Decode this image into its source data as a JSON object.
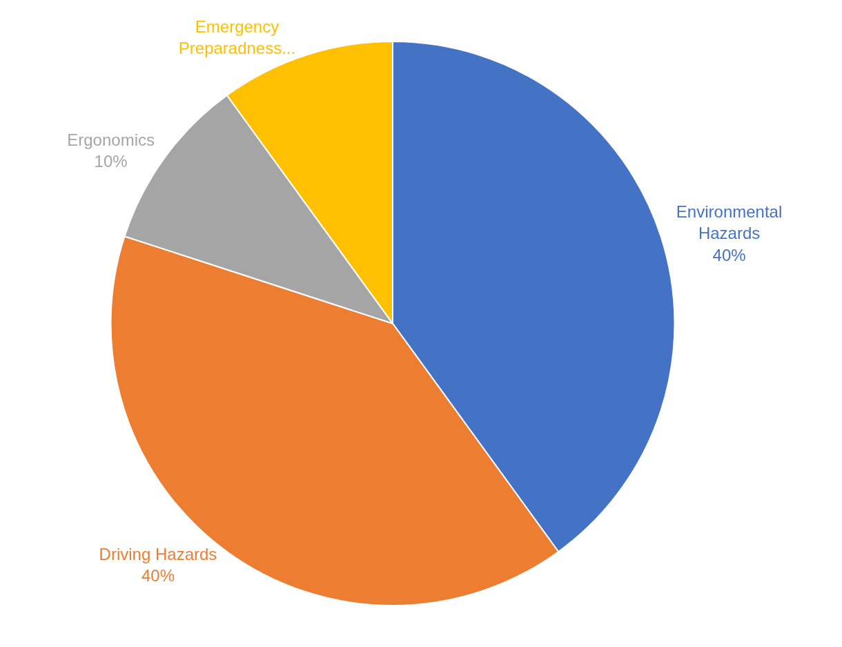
{
  "chart_data": {
    "type": "pie",
    "categories": [
      "Environmental Hazards",
      "Driving Hazards",
      "Ergonomics",
      "Emergency Preparadness..."
    ],
    "values": [
      40,
      40,
      10,
      10
    ],
    "colors": [
      "#4472c4",
      "#ed7d31",
      "#a5a5a5",
      "#ffc000"
    ],
    "value_labels": [
      "40%",
      "40%",
      "10%",
      null
    ],
    "legend": false
  }
}
